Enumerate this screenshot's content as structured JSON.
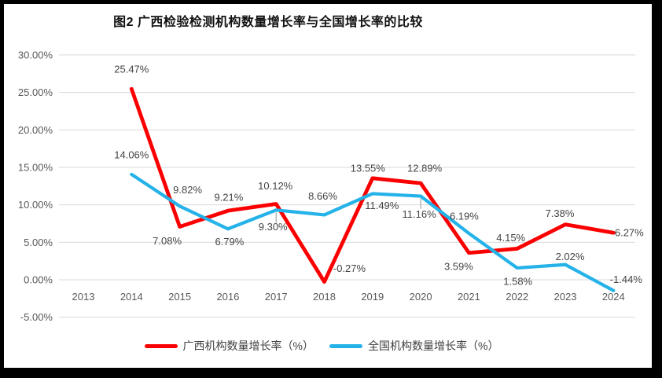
{
  "chart_data": {
    "type": "line",
    "title": "图2 广西检验检测机构数量增长率与全国增长率的比较",
    "categories": [
      "2013",
      "2014",
      "2015",
      "2016",
      "2017",
      "2018",
      "2019",
      "2020",
      "2021",
      "2022",
      "2023",
      "2024"
    ],
    "series": [
      {
        "name": "广西机构数量增长率（%）",
        "color": "#FB0000",
        "values": [
          null,
          25.47,
          7.08,
          9.21,
          10.12,
          -0.27,
          13.55,
          12.89,
          3.59,
          4.15,
          7.38,
          6.27
        ],
        "labels": [
          null,
          "25.47%",
          "7.08%",
          "9.21%",
          "10.12%",
          "-0.27%",
          "13.55%",
          "12.89%",
          "3.59%",
          "4.15%",
          "7.38%",
          "6.27%"
        ]
      },
      {
        "name": "全国机构数量增长率（%）",
        "color": "#25B2E8",
        "values": [
          null,
          14.06,
          9.82,
          6.79,
          9.3,
          8.66,
          11.49,
          11.16,
          6.19,
          1.58,
          2.02,
          -1.44
        ],
        "labels": [
          null,
          "14.06%",
          "9.82%",
          "6.79%",
          "9.30%",
          "8.66%",
          "11.49%",
          "11.16%",
          "6.19%",
          "1.58%",
          "2.02%",
          "-1.44%"
        ]
      }
    ],
    "y_ticks": [
      {
        "label": "30.00%",
        "value": 30
      },
      {
        "label": "25.00%",
        "value": 25
      },
      {
        "label": "20.00%",
        "value": 20
      },
      {
        "label": "15.00%",
        "value": 15
      },
      {
        "label": "10.00%",
        "value": 10
      },
      {
        "label": "5.00%",
        "value": 5
      },
      {
        "label": "0.00%",
        "value": 0
      },
      {
        "label": "-5.00%",
        "value": -5
      }
    ],
    "ylim": [
      -5,
      30
    ],
    "grid": "horizontal",
    "grid_color": "#D9D9D9",
    "leader_color": "#A6A6A6",
    "legend_position": "bottom",
    "frame_color": "#000000"
  }
}
